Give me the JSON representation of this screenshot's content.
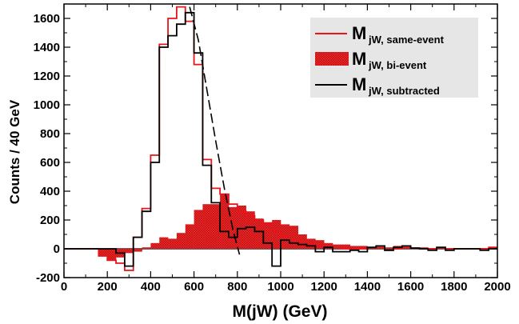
{
  "chart_data": {
    "type": "histogram",
    "xlabel": "M(jW) (GeV)",
    "ylabel": "Counts / 40 GeV",
    "xlim": [
      0,
      2000
    ],
    "ylim": [
      -200,
      1700
    ],
    "x_ticks": [
      0,
      200,
      400,
      600,
      800,
      1000,
      1200,
      1400,
      1600,
      1800,
      2000
    ],
    "y_ticks": [
      -200,
      0,
      200,
      400,
      600,
      800,
      1000,
      1200,
      1400,
      1600
    ],
    "bin_width": 40,
    "bin_edges_start": 0,
    "legend_position": "top-right",
    "series": [
      {
        "name": "same-event",
        "legend_main": "M",
        "legend_sub": "jW, same-event",
        "style": "step-red",
        "color": "#e8141b",
        "values": [
          0,
          0,
          0,
          0,
          -50,
          -80,
          -100,
          -150,
          80,
          280,
          650,
          1420,
          1600,
          1680,
          1580,
          1280,
          620,
          420,
          380,
          310,
          260,
          230,
          200,
          180,
          120,
          90,
          60,
          40,
          30,
          20,
          10,
          5,
          0,
          -5,
          0,
          5,
          10,
          -10,
          0,
          10,
          5,
          0,
          0,
          5,
          0,
          0,
          0,
          0,
          0,
          10
        ]
      },
      {
        "name": "bi-event",
        "legend_main": "M",
        "legend_sub": "jW, bi-event",
        "style": "filled-red",
        "color": "#e8141b",
        "values": [
          0,
          0,
          0,
          0,
          -50,
          -80,
          -60,
          -30,
          -20,
          10,
          40,
          80,
          70,
          110,
          170,
          270,
          310,
          310,
          380,
          290,
          300,
          260,
          210,
          180,
          200,
          170,
          160,
          100,
          70,
          60,
          40,
          30,
          30,
          20,
          20,
          10,
          10,
          10,
          20,
          10,
          10,
          10,
          5,
          5,
          5,
          0,
          5,
          0,
          5,
          10
        ]
      },
      {
        "name": "subtracted",
        "legend_main": "M",
        "legend_sub": "jW, subtracted",
        "style": "step-black",
        "color": "#000000",
        "values": [
          0,
          0,
          0,
          0,
          0,
          0,
          -30,
          -120,
          80,
          260,
          600,
          1400,
          1480,
          1560,
          1640,
          1360,
          580,
          320,
          120,
          80,
          140,
          150,
          120,
          40,
          -120,
          60,
          40,
          30,
          20,
          -20,
          10,
          -20,
          -20,
          -10,
          -20,
          10,
          20,
          -10,
          10,
          20,
          5,
          0,
          -10,
          10,
          -10,
          0,
          0,
          0,
          -10,
          0
        ]
      }
    ],
    "fit_curve": {
      "name": "dashed fit",
      "style": "dashed-black",
      "x": [
        580,
        620,
        660,
        700,
        740,
        780,
        810
      ],
      "y": [
        1680,
        1450,
        1100,
        750,
        420,
        130,
        -40
      ]
    }
  }
}
